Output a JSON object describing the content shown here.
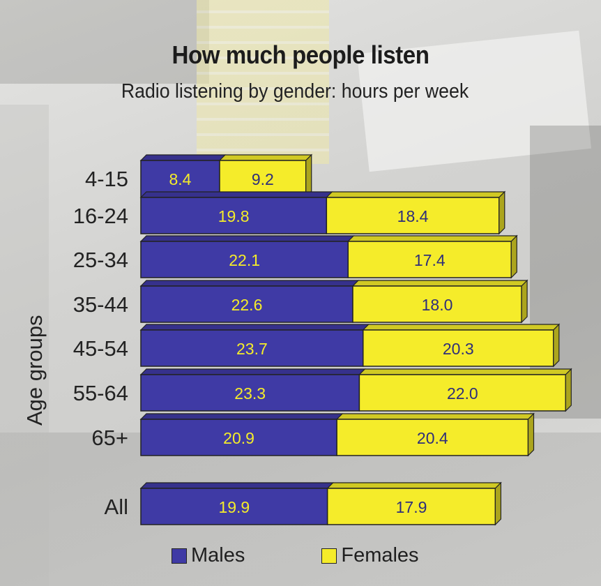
{
  "colors": {
    "males": "#3f3aa5",
    "females": "#f5ec2a",
    "male_text": "#f5ec2a",
    "female_text": "#2e2e7a"
  },
  "chart_data": {
    "type": "bar",
    "orientation": "horizontal",
    "stacked": true,
    "title": "How much people listen",
    "subtitle": "Radio listening by gender: hours per week",
    "ylabel": "Age groups",
    "categories": [
      "4-15",
      "16-24",
      "25-34",
      "35-44",
      "45-54",
      "55-64",
      "65+",
      "All"
    ],
    "series": [
      {
        "name": "Males",
        "values": [
          8.4,
          19.8,
          22.1,
          22.6,
          23.7,
          23.3,
          20.9,
          19.9
        ]
      },
      {
        "name": "Females",
        "values": [
          9.2,
          18.4,
          17.4,
          18.0,
          20.3,
          22.0,
          20.4,
          17.9
        ]
      }
    ],
    "legend_position": "bottom",
    "grid": false
  }
}
